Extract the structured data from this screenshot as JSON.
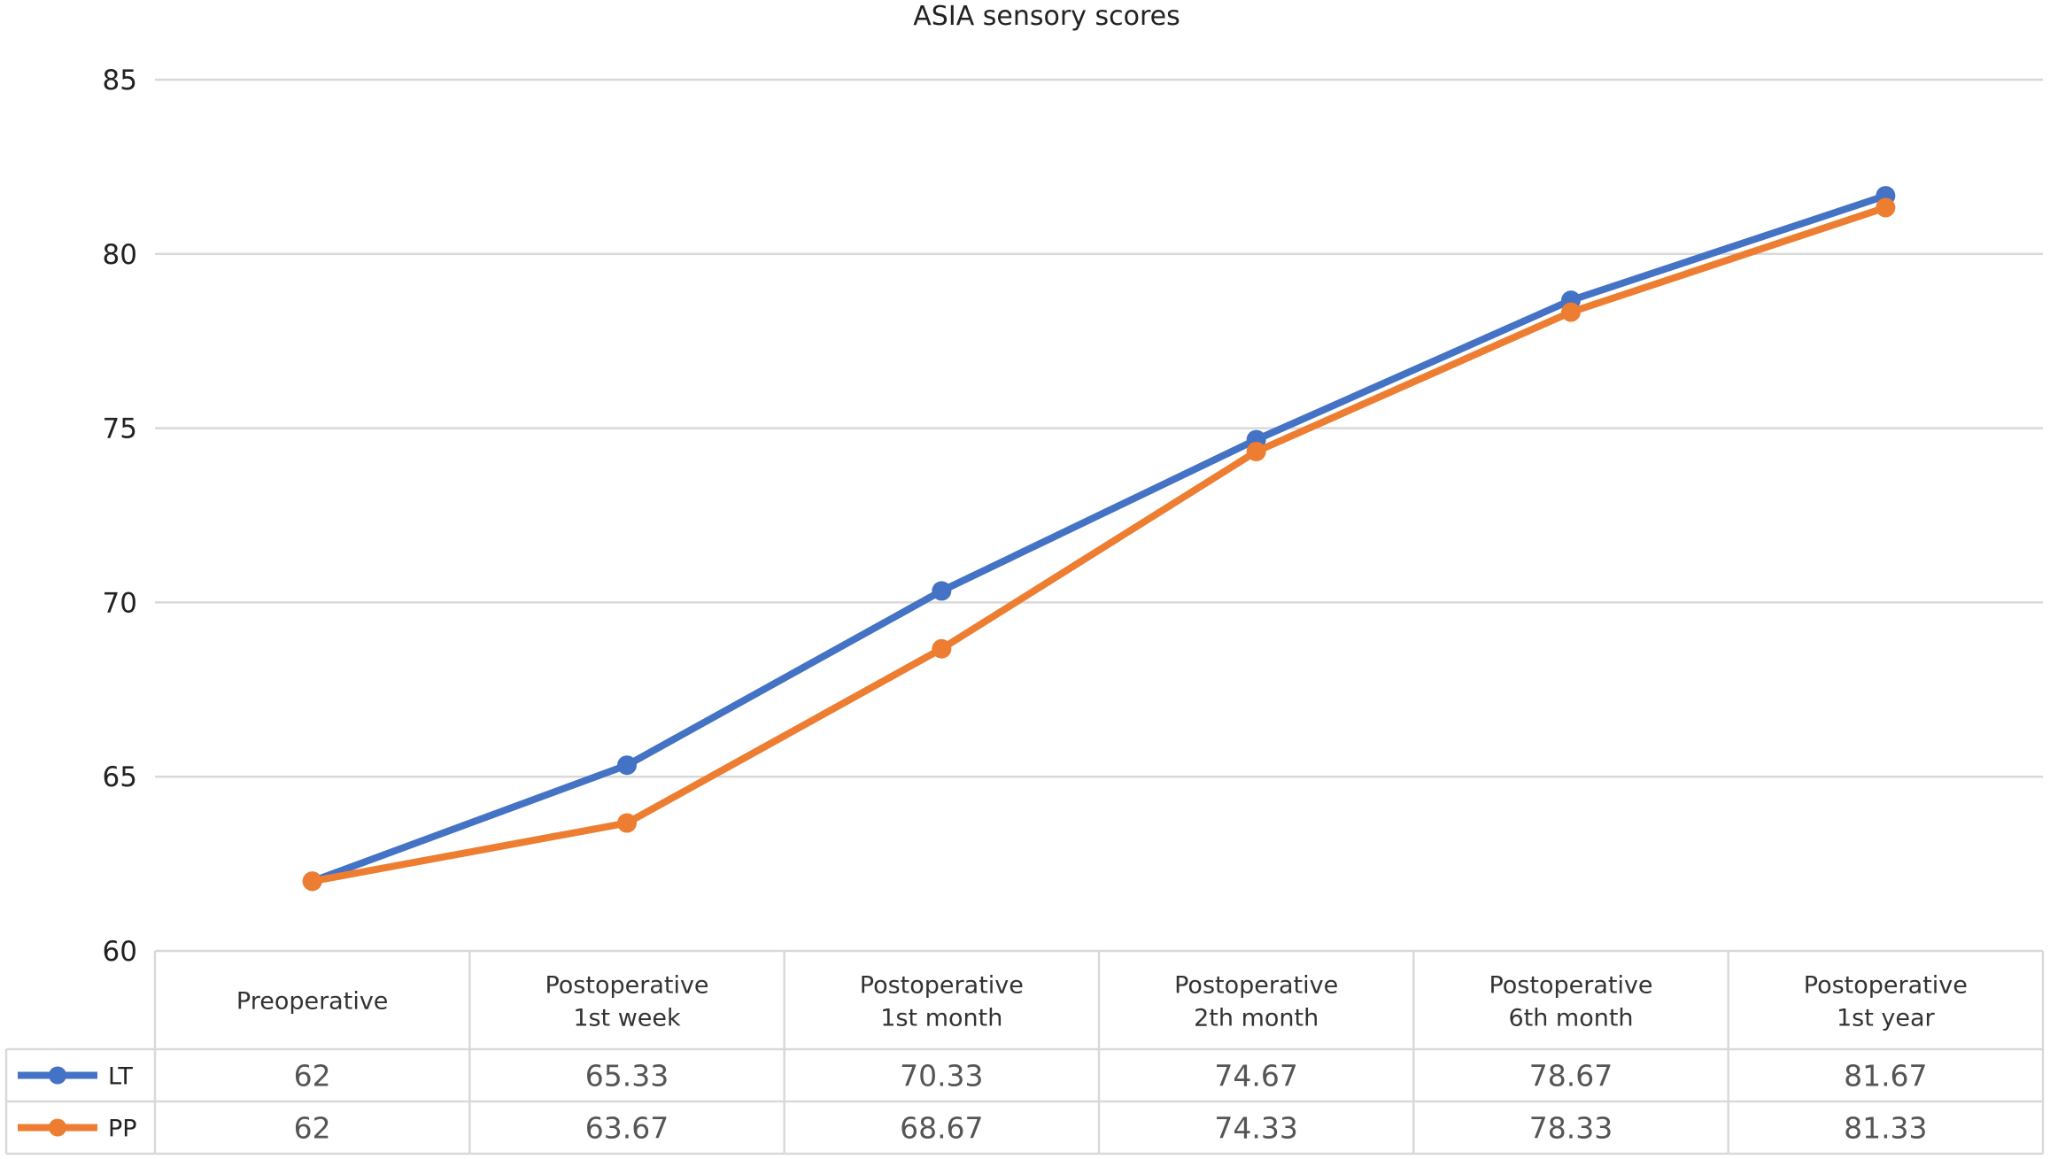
{
  "chart_data": {
    "type": "line",
    "title": "ASIA sensory scores",
    "xlabel": "",
    "ylabel": "",
    "ylim": [
      60,
      85
    ],
    "yticks": [
      60,
      65,
      70,
      75,
      80,
      85
    ],
    "grid": true,
    "legend_placement": "data-table-left",
    "categories": [
      [
        "Preoperative"
      ],
      [
        "Postoperative",
        "1st week"
      ],
      [
        "Postoperative",
        "1st month"
      ],
      [
        "Postoperative",
        "2th month"
      ],
      [
        "Postoperative",
        "6th month"
      ],
      [
        "Postoperative",
        "1st year"
      ]
    ],
    "series": [
      {
        "name": "LT",
        "color": "#4472C4",
        "values": [
          62,
          65.33,
          70.33,
          74.67,
          78.67,
          81.67
        ]
      },
      {
        "name": "PP",
        "color": "#ED7D31",
        "values": [
          62,
          63.67,
          68.67,
          74.33,
          78.33,
          81.33
        ]
      }
    ]
  }
}
